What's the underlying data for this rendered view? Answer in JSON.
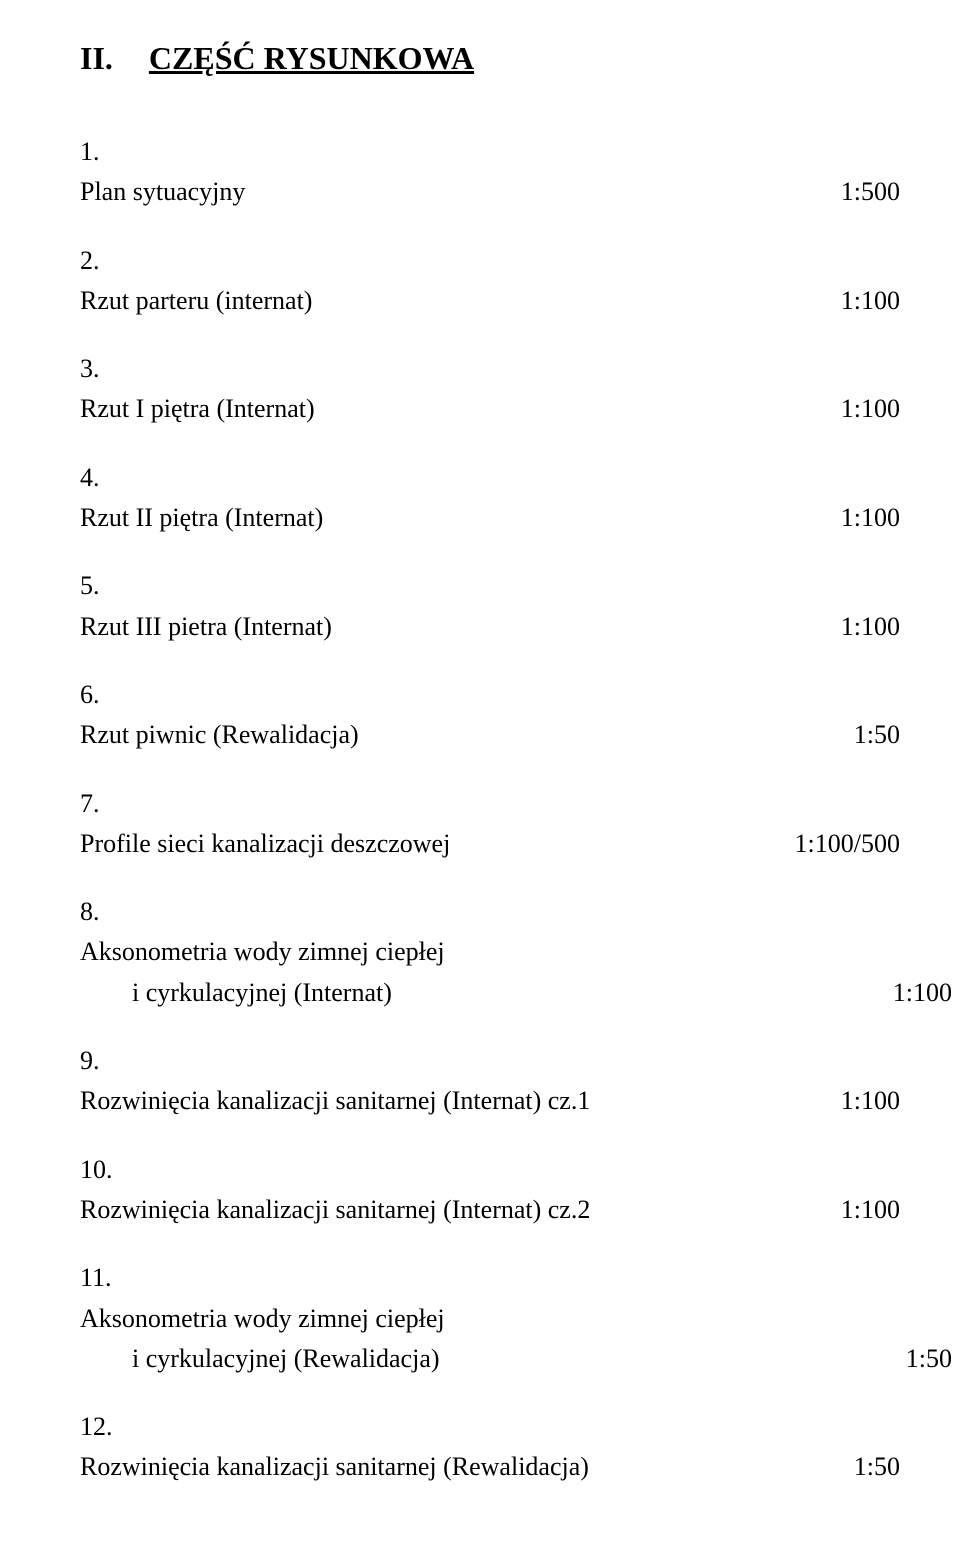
{
  "header": {
    "prefix": "II.",
    "title": "CZĘŚĆ RYSUNKOWA"
  },
  "entries": [
    {
      "label": "Plan sytuacyjny",
      "scale": "1:500"
    },
    {
      "label": "Rzut parteru (internat)",
      "scale": "1:100"
    },
    {
      "label": "Rzut I piętra (Internat)",
      "scale": "1:100"
    },
    {
      "label": "Rzut II piętra (Internat)",
      "scale": "1:100"
    },
    {
      "label": "Rzut III pietra (Internat)",
      "scale": "1:100"
    },
    {
      "label": "Rzut piwnic (Rewalidacja)",
      "scale": "1:50"
    },
    {
      "label": "Profile sieci kanalizacji deszczowej",
      "scale": "1:100/500"
    },
    {
      "label": "Aksonometria wody zimnej ciepłej",
      "label2": "i cyrkulacyjnej (Internat)",
      "scale": "1:100"
    },
    {
      "label": "Rozwinięcia kanalizacji sanitarnej (Internat) cz.1",
      "scale": "1:100"
    },
    {
      "label": "Rozwinięcia kanalizacji sanitarnej (Internat) cz.2",
      "scale": "1:100"
    },
    {
      "label": "Aksonometria wody zimnej ciepłej",
      "label2": "i cyrkulacyjnej (Rewalidacja)",
      "scale": "1:50"
    },
    {
      "label": "Rozwinięcia kanalizacji sanitarnej (Rewalidacja)",
      "scale": "1:50"
    }
  ],
  "style": {
    "font_family": "Times New Roman",
    "title_fontsize_pt": 24,
    "body_fontsize_pt": 19,
    "text_color": "#000000",
    "background_color": "#ffffff"
  }
}
